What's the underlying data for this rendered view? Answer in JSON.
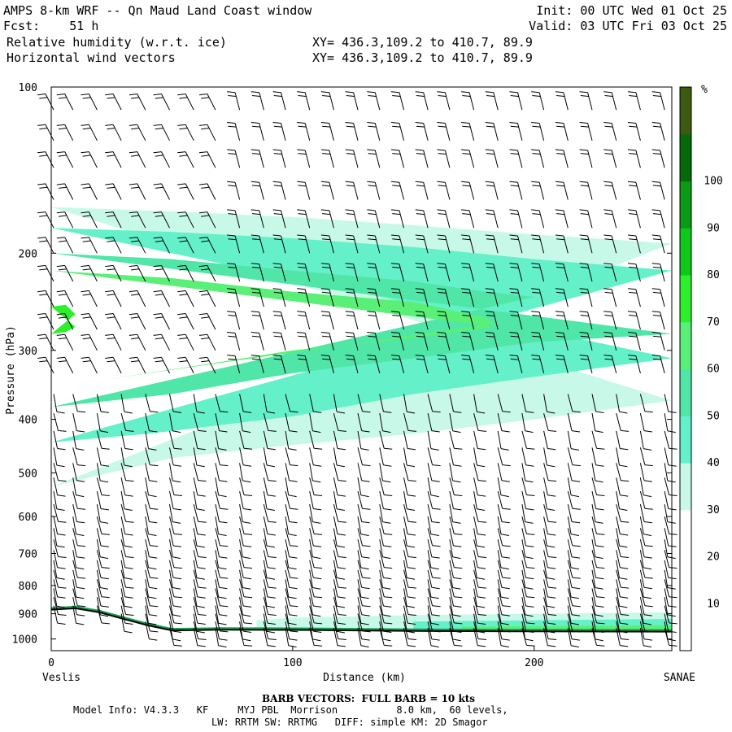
{
  "header": {
    "title": "AMPS 8-km WRF -- Qn Maud Land Coast window",
    "fcst": "Fcst:    51 h",
    "field1": "Relative humidity (w.r.t. ice)",
    "field2": "Horizontal wind vectors",
    "init": "Init: 00 UTC Wed 01 Oct 25",
    "valid": "Valid: 03 UTC Fri 03 Oct 25",
    "xy1": "XY= 436.3,109.2 to 410.7, 89.9",
    "xy2": "XY= 436.3,109.2 to 410.7, 89.9"
  },
  "footer": {
    "barb_note": "BARB VECTORS:  FULL BARB = 10 kts",
    "model_line1": "Model Info: V4.3.3   KF     MYJ PBL  Morrison          8.0 km,  60 levels,",
    "model_line2": "LW: RRTM SW: RRTMG   DIFF: simple KM: 2D Smagor"
  },
  "chart_data": {
    "type": "cross-section contour",
    "xlabel": "Distance (km)",
    "ylabel": "Pressure (hPa)",
    "x_left_label": "Veslis",
    "x_right_label": "SANAE",
    "xlim": [
      0,
      257
    ],
    "ylim": [
      100,
      1050
    ],
    "y_log": true,
    "x_ticks": [
      "0",
      "100",
      "200"
    ],
    "x_tick_values": [
      0,
      100,
      200
    ],
    "y_ticks": [
      "100",
      "200",
      "300",
      "400",
      "500",
      "600",
      "700",
      "800",
      "900",
      "1000"
    ],
    "y_tick_values": [
      100,
      200,
      300,
      400,
      500,
      600,
      700,
      800,
      900,
      1000
    ],
    "colorbar": {
      "unit": "%",
      "labels": [
        "10",
        "20",
        "30",
        "40",
        "50",
        "60",
        "70",
        "80",
        "90",
        "100"
      ],
      "levels": [
        0,
        10,
        20,
        30,
        40,
        50,
        60,
        70,
        80,
        90,
        100,
        110
      ],
      "colors": [
        "#ffffff",
        "#ffffff",
        "#ffffff",
        "#c8f8e8",
        "#64f0c8",
        "#50e6a8",
        "#5af078",
        "#2cf02c",
        "#10c81c",
        "#0a9a14",
        "#056a0c",
        "#3d5a10"
      ]
    },
    "rh_regions": [
      {
        "level": 30,
        "color": "#c8f8e8",
        "top": [
          [
            0,
            165
          ],
          [
            50,
            168
          ],
          [
            100,
            172
          ],
          [
            150,
            178
          ],
          [
            200,
            185
          ],
          [
            257,
            192
          ]
        ],
        "bottom": [
          [
            0,
            530
          ],
          [
            20,
            505
          ],
          [
            50,
            470
          ],
          [
            100,
            445
          ],
          [
            150,
            425
          ],
          [
            200,
            400
          ],
          [
            257,
            370
          ]
        ]
      },
      {
        "level": 40,
        "color": "#64f0c8",
        "top": [
          [
            0,
            180
          ],
          [
            50,
            183
          ],
          [
            100,
            188
          ],
          [
            150,
            195
          ],
          [
            200,
            205
          ],
          [
            257,
            215
          ]
        ],
        "bottom": [
          [
            0,
            440
          ],
          [
            40,
            425
          ],
          [
            100,
            395
          ],
          [
            150,
            360
          ],
          [
            200,
            335
          ],
          [
            257,
            310
          ]
        ]
      },
      {
        "level": 50,
        "color": "#50e6a8",
        "top": [
          [
            0,
            200
          ],
          [
            50,
            205
          ],
          [
            100,
            215
          ],
          [
            150,
            225
          ],
          [
            180,
            235
          ],
          [
            200,
            240
          ]
        ],
        "bottom": [
          [
            0,
            380
          ],
          [
            50,
            360
          ],
          [
            100,
            330
          ],
          [
            150,
            310
          ],
          [
            200,
            290
          ],
          [
            257,
            280
          ]
        ]
      },
      {
        "level": 60,
        "color": "#5af078",
        "top": [
          [
            0,
            215
          ],
          [
            50,
            222
          ],
          [
            100,
            235
          ],
          [
            150,
            245
          ],
          [
            180,
            262
          ],
          [
            184,
            268
          ]
        ],
        "bottom": [
          [
            184,
            272
          ],
          [
            150,
            285
          ],
          [
            100,
            300
          ],
          [
            60,
            320
          ],
          [
            20,
            340
          ],
          [
            0,
            350
          ]
        ]
      },
      {
        "level": 70,
        "color": "#2cf02c",
        "top": [
          [
            0,
            250
          ],
          [
            6,
            248
          ],
          [
            10,
            258
          ]
        ],
        "bottom": [
          [
            10,
            272
          ],
          [
            6,
            278
          ],
          [
            0,
            280
          ]
        ]
      }
    ],
    "boundary_layer_regions": [
      {
        "level": 30,
        "color": "#c8f8e8",
        "top": [
          [
            85,
            925
          ],
          [
            100,
            915
          ],
          [
            150,
            905
          ],
          [
            200,
            900
          ],
          [
            257,
            895
          ]
        ]
      },
      {
        "level": 40,
        "color": "#64f0c8",
        "top": [
          [
            150,
            930
          ],
          [
            200,
            925
          ],
          [
            257,
            920
          ]
        ]
      },
      {
        "level": 60,
        "color": "#5af078",
        "top": [
          [
            170,
            950
          ],
          [
            200,
            948
          ],
          [
            257,
            944
          ]
        ]
      }
    ],
    "terrain": [
      [
        0,
        885
      ],
      [
        10,
        880
      ],
      [
        20,
        895
      ],
      [
        30,
        920
      ],
      [
        40,
        945
      ],
      [
        50,
        965
      ],
      [
        70,
        962
      ],
      [
        100,
        963
      ],
      [
        150,
        967
      ],
      [
        200,
        969
      ],
      [
        257,
        970
      ]
    ],
    "wind_columns_km": [
      0,
      9,
      19,
      29,
      39,
      49,
      59,
      68,
      78,
      88,
      97,
      107,
      117,
      127,
      136,
      146,
      156,
      165,
      175,
      185,
      195,
      204,
      214,
      224,
      234,
      244,
      254
    ],
    "wind_levels_hpa": [
      110,
      125,
      140,
      160,
      180,
      200,
      225,
      250,
      275,
      300,
      330,
      360,
      390,
      420,
      450,
      480,
      510,
      540,
      570,
      600,
      630,
      660,
      690,
      720,
      750,
      780,
      810,
      840,
      870,
      900,
      930,
      955
    ],
    "barb_notation": "full barb = 10 kts"
  }
}
